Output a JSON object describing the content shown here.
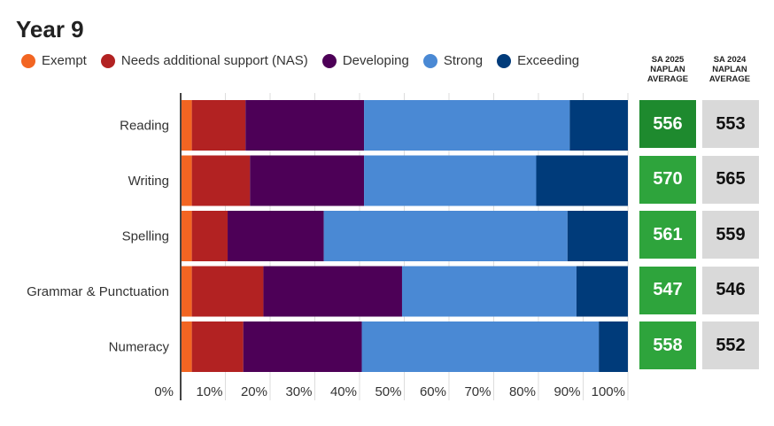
{
  "title": "Year 9",
  "chart_data": {
    "type": "bar",
    "orientation": "horizontal",
    "stacked": true,
    "title": "Year 9",
    "categories": [
      "Reading",
      "Writing",
      "Spelling",
      "Grammar & Punctuation",
      "Numeracy"
    ],
    "series": [
      {
        "name": "Exempt",
        "color": "#f26522",
        "values": [
          2.5,
          2.5,
          2.5,
          2.5,
          2.5
        ]
      },
      {
        "name": "Needs additional support (NAS)",
        "color": "#b22222",
        "values": [
          12,
          13,
          8,
          16,
          11.5
        ]
      },
      {
        "name": "Developing",
        "color": "#4d0057",
        "values": [
          26.5,
          25.5,
          21.5,
          31,
          26.5
        ]
      },
      {
        "name": "Strong",
        "color": "#4a89d4",
        "values": [
          46,
          38.5,
          54.5,
          39,
          53
        ]
      },
      {
        "name": "Exceeding",
        "color": "#003b7a",
        "values": [
          13,
          20.5,
          13.5,
          11.5,
          6.5
        ]
      }
    ],
    "x_ticks": [
      "0%",
      "10%",
      "20%",
      "30%",
      "40%",
      "50%",
      "60%",
      "70%",
      "80%",
      "90%",
      "100%"
    ],
    "xlim": [
      0,
      100
    ],
    "grid": true,
    "legend_position": "top"
  },
  "averages": {
    "sa2025_header": [
      "SA 2025",
      "NAPLAN",
      "AVERAGE"
    ],
    "sa2024_header": [
      "SA 2024",
      "NAPLAN",
      "AVERAGE"
    ],
    "sa2025_values": [
      "556",
      "570",
      "561",
      "547",
      "558"
    ],
    "sa2024_values": [
      "553",
      "565",
      "559",
      "546",
      "552"
    ],
    "sa2025_colors": [
      "#1e8a2e",
      "#2ea43c",
      "#2ea43c",
      "#2ea43c",
      "#2ea43c"
    ],
    "sa2024_color": "#d9d9d9"
  }
}
